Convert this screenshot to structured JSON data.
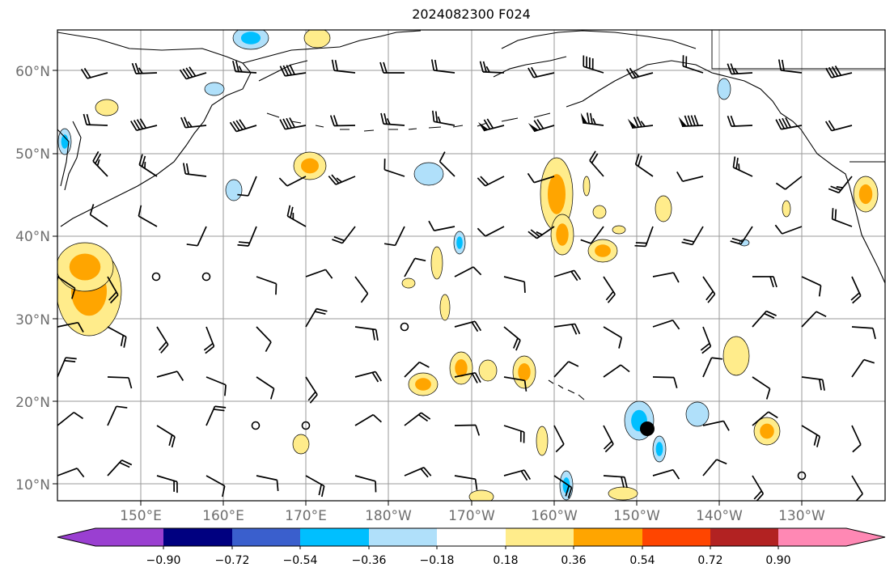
{
  "title": "2024082300 F024",
  "lat_labels": [
    "60°N",
    "50°N",
    "40°N",
    "30°N",
    "20°N",
    "10°N"
  ],
  "lon_labels": [
    "150°E",
    "160°E",
    "170°E",
    "180°W",
    "170°W",
    "160°W",
    "150°W",
    "140°W",
    "130°W"
  ],
  "colorbar": {
    "ticks": [
      "−0.90",
      "−0.72",
      "−0.54",
      "−0.36",
      "−0.18",
      "0.18",
      "0.36",
      "0.54",
      "0.72",
      "0.90"
    ],
    "colors": [
      "#9a3fd1",
      "#000080",
      "#3a5fcd",
      "#00bfff",
      "#b0e0fa",
      "#ffffff",
      "#ffec8b",
      "#ffa500",
      "#ff4500",
      "#b22222",
      "#ff88b4"
    ]
  },
  "palette": {
    "pos_light": "#ffec8b",
    "pos_mid": "#ffa500",
    "neg_light": "#b0e0fa",
    "neg_mid": "#00bfff",
    "grid": "#9a9a9a",
    "land": "#000000"
  }
}
